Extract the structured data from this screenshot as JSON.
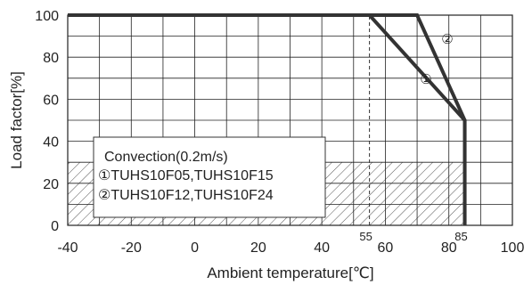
{
  "chart_data": {
    "type": "line",
    "xlabel": "Ambient temperature[℃]",
    "ylabel": "Load factor[%]",
    "xlim": [
      -40,
      100
    ],
    "ylim": [
      0,
      100
    ],
    "x_ticks": [
      "-40",
      "-20",
      "0",
      "20",
      "40",
      "60",
      "80",
      "100"
    ],
    "y_ticks": [
      "0",
      "20",
      "40",
      "60",
      "80",
      "100"
    ],
    "extra_x_ticks": [
      "55",
      "85"
    ],
    "grid": true,
    "series": [
      {
        "name": "①",
        "x": [
          -40,
          55,
          85,
          85
        ],
        "y": [
          100,
          100,
          50,
          0
        ]
      },
      {
        "name": "②",
        "x": [
          -40,
          70,
          85,
          85
        ],
        "y": [
          100,
          100,
          50,
          0
        ]
      }
    ],
    "reference_lines": [
      {
        "x": 55,
        "y_range": [
          0,
          100
        ],
        "style": "dashed"
      }
    ],
    "hatched_region": {
      "x_range": [
        -40,
        85
      ],
      "y_range": [
        0,
        30
      ]
    },
    "legend": {
      "title": "Convection(0.2m/s)",
      "entries": [
        "①TUHS10F05,TUHS10F15",
        "②TUHS10F12,TUHS10F24"
      ]
    },
    "curve_labels": [
      "①",
      "②"
    ],
    "colors": {
      "line": "#333333",
      "grid": "#222222",
      "hatch": "#555555"
    }
  }
}
